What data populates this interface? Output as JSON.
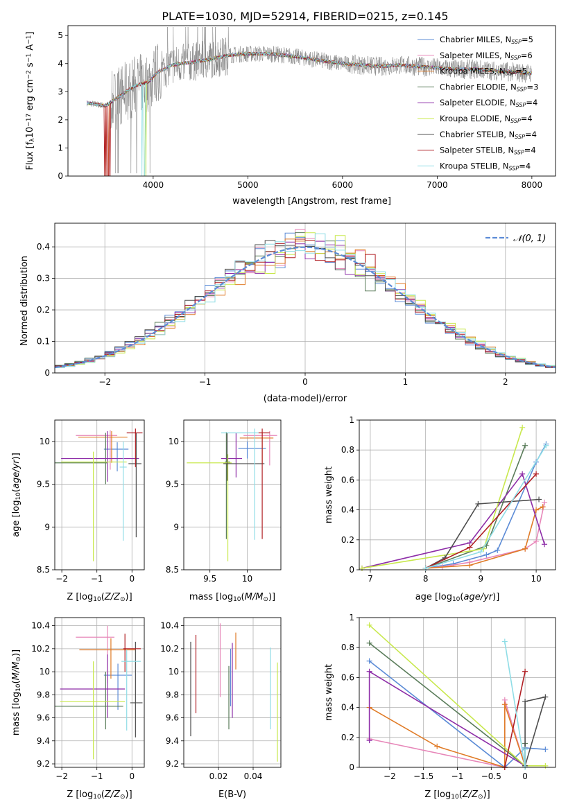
{
  "title": "PLATE=1030, MJD=52914, FIBERID=0215, z=0.145",
  "colors": {
    "chabrier_miles": "#5b8bd6",
    "salpeter_miles": "#e787b9",
    "kroupa_miles": "#e07b27",
    "chabrier_elodie": "#5a7c5a",
    "salpeter_elodie": "#8e2ea8",
    "kroupa_elodie": "#c8e84c",
    "chabrier_stelib": "#4d4d4d",
    "salpeter_stelib": "#b01f24",
    "kroupa_stelib": "#8fdde6",
    "data": "#808080",
    "normal": "#5b8bd6"
  },
  "chart_data": [
    {
      "id": "spectrum",
      "type": "line",
      "xlabel": "wavelength [Angstrom, rest frame]",
      "ylabel": "Flux [f_λ 10^-17 erg cm^-2 s^-1 A^-1]",
      "xlim": [
        3100,
        8250
      ],
      "ylim": [
        0,
        5.35
      ],
      "xticks": [
        4000,
        5000,
        6000,
        7000,
        8000
      ],
      "yticks": [
        0,
        1,
        2,
        3,
        4,
        5
      ],
      "grid": false,
      "legend_position": "top-right",
      "legend": [
        {
          "key": "chabrier_miles",
          "label": "Chabrier MILES, N_SSP=5"
        },
        {
          "key": "salpeter_miles",
          "label": "Salpeter MILES, N_SSP=6"
        },
        {
          "key": "kroupa_miles",
          "label": "Kroupa MILES, N_SSP=5"
        },
        {
          "key": "chabrier_elodie",
          "label": "Chabrier ELODIE, N_SSP=3"
        },
        {
          "key": "salpeter_elodie",
          "label": "Salpeter ELODIE, N_SSP=4"
        },
        {
          "key": "kroupa_elodie",
          "label": "Kroupa ELODIE, N_SSP=4"
        },
        {
          "key": "chabrier_stelib",
          "label": "Chabrier STELIB, N_SSP=4"
        },
        {
          "key": "salpeter_stelib",
          "label": "Salpeter STELIB, N_SSP=4"
        },
        {
          "key": "kroupa_stelib",
          "label": "Kroupa STELIB, N_SSP=4"
        }
      ],
      "continuum": {
        "x": [
          3300,
          3500,
          3650,
          3800,
          3950,
          4050,
          4200,
          4400,
          4600,
          4800,
          5000,
          5200,
          5400,
          5600,
          5800,
          6000,
          6200,
          6400,
          6600,
          6800,
          7000,
          7200,
          7400,
          7600,
          7800,
          8000
        ],
        "y": [
          2.6,
          2.5,
          2.85,
          3.2,
          3.35,
          3.7,
          3.95,
          4.05,
          4.15,
          4.3,
          4.35,
          4.35,
          4.3,
          4.2,
          4.1,
          4.0,
          3.95,
          3.9,
          3.95,
          3.9,
          3.85,
          3.8,
          3.8,
          3.75,
          3.7,
          3.65
        ]
      }
    },
    {
      "id": "residuals",
      "type": "histogram",
      "xlabel": "(data-model)/error",
      "ylabel": "Normed distribution",
      "xlim": [
        -2.5,
        2.5
      ],
      "ylim": [
        0,
        0.475
      ],
      "xticks": [
        -2,
        -1,
        0,
        1,
        2
      ],
      "yticks": [
        0.0,
        0.1,
        0.2,
        0.3,
        0.4
      ],
      "grid": true,
      "legend_position": "top-right",
      "legend_label": "𝒩(0, 1)",
      "bin_width": 0.1
    },
    {
      "id": "age_vs_Z",
      "type": "errorbar",
      "xlabel": "Z [log10(Z/Z⊙)]",
      "ylabel": "age  [log10(age/yr)]",
      "xlim": [
        -2.2,
        0.35
      ],
      "ylim": [
        8.5,
        10.25
      ],
      "xticks": [
        -2,
        -1,
        0
      ],
      "yticks": [
        8.5,
        9.0,
        9.5,
        10.0
      ],
      "grid": true,
      "points": [
        {
          "key": "chabrier_miles",
          "x": -0.42,
          "xerr": [
            0.38,
            0.32
          ],
          "y": 9.91,
          "yerr": [
            0.26,
            0.08
          ]
        },
        {
          "key": "salpeter_miles",
          "x": -0.62,
          "xerr": [
            0.98,
            0.2
          ],
          "y": 10.07,
          "yerr": [
            0.4,
            0.06
          ]
        },
        {
          "key": "kroupa_miles",
          "x": -0.58,
          "xerr": [
            0.95,
            0.45
          ],
          "y": 10.05,
          "yerr": [
            0.3,
            0.07
          ]
        },
        {
          "key": "chabrier_elodie",
          "x": -0.75,
          "xerr": [
            1.45,
            0.05
          ],
          "y": 9.75,
          "yerr": [
            0.25,
            0.35
          ]
        },
        {
          "key": "salpeter_elodie",
          "x": -0.7,
          "xerr": [
            1.32,
            0.9
          ],
          "y": 9.8,
          "yerr": [
            0.27,
            0.32
          ]
        },
        {
          "key": "kroupa_elodie",
          "x": -1.1,
          "xerr": [
            0.92,
            0.95
          ],
          "y": 9.76,
          "yerr": [
            1.16,
            0.12
          ]
        },
        {
          "key": "chabrier_stelib",
          "x": 0.12,
          "xerr": [
            0.22,
            0.15
          ],
          "y": 9.74,
          "yerr": [
            0.86,
            0.36
          ]
        },
        {
          "key": "salpeter_stelib",
          "x": 0.1,
          "xerr": [
            0.25,
            0.2
          ],
          "y": 10.1,
          "yerr": [
            0.4,
            0.05
          ]
        },
        {
          "key": "kroupa_stelib",
          "x": -0.25,
          "xerr": [
            0.1,
            0.1
          ],
          "y": 9.7,
          "yerr": [
            0.86,
            0.3
          ]
        }
      ]
    },
    {
      "id": "age_vs_mass",
      "type": "errorbar",
      "xlabel": "mass [log10(M/M⊙)]",
      "ylabel": "",
      "xlim": [
        9.15,
        10.45
      ],
      "ylim": [
        8.5,
        10.25
      ],
      "xticks": [
        9.5,
        10.0
      ],
      "yticks": [
        8.5,
        9.0,
        9.5,
        10.0
      ],
      "grid": true,
      "points": [
        {
          "key": "chabrier_miles",
          "x": 10.0,
          "xerr": [
            0.12,
            0.25
          ],
          "y": 9.92,
          "yerr": [
            0.12,
            0.08
          ]
        },
        {
          "key": "salpeter_miles",
          "x": 10.3,
          "xerr": [
            0.35,
            0.1
          ],
          "y": 10.07,
          "yerr": [
            0.35,
            0.05
          ]
        },
        {
          "key": "kroupa_miles",
          "x": 10.2,
          "xerr": [
            0.3,
            0.15
          ],
          "y": 10.04,
          "yerr": [
            0.3,
            0.06
          ]
        },
        {
          "key": "chabrier_elodie",
          "x": 9.72,
          "xerr": [
            0.02,
            0.05
          ],
          "y": 9.76,
          "yerr": [
            0.9,
            0.35
          ]
        },
        {
          "key": "salpeter_elodie",
          "x": 9.85,
          "xerr": [
            0.2,
            0.08
          ],
          "y": 9.8,
          "yerr": [
            0.22,
            0.3
          ]
        },
        {
          "key": "kroupa_elodie",
          "x": 9.74,
          "xerr": [
            0.55,
            0.05
          ],
          "y": 9.75,
          "yerr": [
            1.15,
            0.1
          ]
        },
        {
          "key": "chabrier_stelib",
          "x": 9.73,
          "xerr": [
            0.05,
            0.5
          ],
          "y": 9.74,
          "yerr": [
            0.2,
            0.36
          ]
        },
        {
          "key": "salpeter_stelib",
          "x": 10.2,
          "xerr": [
            0.05,
            0.1
          ],
          "y": 10.1,
          "yerr": [
            1.24,
            0.05
          ]
        },
        {
          "key": "kroupa_stelib",
          "x": 10.1,
          "xerr": [
            0.45,
            0.05
          ],
          "y": 10.1,
          "yerr": [
            1.25,
            0.05
          ]
        }
      ]
    },
    {
      "id": "weight_vs_age",
      "type": "line",
      "xlabel": "age  [log10(age/yr)]",
      "ylabel": "mass weight",
      "xlim": [
        6.8,
        10.35
      ],
      "ylim": [
        0,
        1.0
      ],
      "xticks": [
        7,
        8,
        9,
        10
      ],
      "yticks": [
        0.0,
        0.2,
        0.4,
        0.6,
        0.8,
        1.0
      ],
      "grid": true,
      "series": [
        {
          "key": "chabrier_miles",
          "x": [
            8.0,
            8.5,
            9.1,
            9.3,
            10.0,
            10.18
          ],
          "y": [
            0.01,
            0.04,
            0.1,
            0.13,
            0.72,
            0.84
          ]
        },
        {
          "key": "salpeter_miles",
          "x": [
            8.0,
            8.3,
            8.8,
            9.8,
            10.0,
            10.15
          ],
          "y": [
            0.01,
            0.02,
            0.05,
            0.14,
            0.19,
            0.45
          ]
        },
        {
          "key": "kroupa_miles",
          "x": [
            8.0,
            8.8,
            9.8,
            10.0,
            10.12
          ],
          "y": [
            0.01,
            0.03,
            0.14,
            0.4,
            0.42
          ]
        },
        {
          "key": "chabrier_elodie",
          "x": [
            8.0,
            9.1,
            9.8
          ],
          "y": [
            0.01,
            0.16,
            0.83
          ]
        },
        {
          "key": "salpeter_elodie",
          "x": [
            6.85,
            8.8,
            9.75,
            10.15
          ],
          "y": [
            0.01,
            0.18,
            0.64,
            0.17
          ]
        },
        {
          "key": "kroupa_elodie",
          "x": [
            6.85,
            9.05,
            9.75
          ],
          "y": [
            0.01,
            0.14,
            0.95
          ]
        },
        {
          "key": "chabrier_stelib",
          "x": [
            8.0,
            8.35,
            8.95,
            10.05
          ],
          "y": [
            0.01,
            0.08,
            0.44,
            0.47
          ]
        },
        {
          "key": "salpeter_stelib",
          "x": [
            8.0,
            8.8,
            10.0
          ],
          "y": [
            0.01,
            0.15,
            0.64
          ]
        },
        {
          "key": "kroupa_stelib",
          "x": [
            8.0,
            9.0,
            10.18
          ],
          "y": [
            0.01,
            0.12,
            0.83
          ]
        }
      ]
    },
    {
      "id": "mass_vs_Z",
      "type": "errorbar",
      "xlabel": "Z [log10(Z/Z⊙)]",
      "ylabel": "mass [log10(M/M⊙)]",
      "xlim": [
        -2.2,
        0.35
      ],
      "ylim": [
        9.17,
        10.47
      ],
      "xticks": [
        -2,
        -1,
        0
      ],
      "yticks": [
        9.2,
        9.4,
        9.6,
        9.8,
        10.0,
        10.2,
        10.4
      ],
      "grid": true,
      "points": [
        {
          "key": "chabrier_miles",
          "x": -0.4,
          "xerr": [
            0.4,
            0.4
          ],
          "y": 9.97,
          "yerr": [
            0.3,
            0.1
          ]
        },
        {
          "key": "salpeter_miles",
          "x": -0.7,
          "xerr": [
            0.9,
            0.2
          ],
          "y": 10.3,
          "yerr": [
            0.4,
            0.1
          ]
        },
        {
          "key": "kroupa_miles",
          "x": -0.6,
          "xerr": [
            0.9,
            0.7
          ],
          "y": 10.19,
          "yerr": [
            0.25,
            0.1
          ]
        },
        {
          "key": "chabrier_elodie",
          "x": -0.75,
          "xerr": [
            1.45,
            0.5
          ],
          "y": 9.7,
          "yerr": [
            0.2,
            0.3
          ]
        },
        {
          "key": "salpeter_elodie",
          "x": -0.7,
          "xerr": [
            1.35,
            0.5
          ],
          "y": 9.85,
          "yerr": [
            0.25,
            0.3
          ]
        },
        {
          "key": "kroupa_elodie",
          "x": -1.1,
          "xerr": [
            0.95,
            0.9
          ],
          "y": 9.74,
          "yerr": [
            0.5,
            0.35
          ]
        },
        {
          "key": "chabrier_stelib",
          "x": 0.1,
          "xerr": [
            0.15,
            0.2
          ],
          "y": 9.73,
          "yerr": [
            0.3,
            0.53
          ]
        },
        {
          "key": "salpeter_stelib",
          "x": -0.2,
          "xerr": [
            0.05,
            0.45
          ],
          "y": 10.2,
          "yerr": [
            0.2,
            0.13
          ]
        },
        {
          "key": "kroupa_stelib",
          "x": -0.15,
          "xerr": [
            0.15,
            0.4
          ],
          "y": 10.09,
          "yerr": [
            0.6,
            0.1
          ]
        }
      ]
    },
    {
      "id": "mass_vs_ebv",
      "type": "errorbar",
      "xlabel": "E(B-V)",
      "ylabel": "",
      "xlim": [
        0.0,
        0.056
      ],
      "ylim": [
        9.17,
        10.47
      ],
      "xticks": [
        0.02,
        0.04
      ],
      "yticks": [
        9.2,
        9.4,
        9.6,
        9.8,
        10.0,
        10.2,
        10.4
      ],
      "grid": true,
      "points": [
        {
          "key": "chabrier_miles",
          "x": 0.027,
          "y": 10.05,
          "yerr": [
            0.35,
            0.15
          ]
        },
        {
          "key": "salpeter_miles",
          "x": 0.021,
          "y": 10.2,
          "yerr": [
            0.42,
            0.22
          ]
        },
        {
          "key": "kroupa_miles",
          "x": 0.03,
          "y": 10.18,
          "yerr": [
            0.16,
            0.16
          ]
        },
        {
          "key": "chabrier_elodie",
          "x": 0.026,
          "y": 9.85,
          "yerr": [
            0.35,
            0.2
          ]
        },
        {
          "key": "salpeter_elodie",
          "x": 0.028,
          "y": 9.9,
          "yerr": [
            0.3,
            0.35
          ]
        },
        {
          "key": "kroupa_elodie",
          "x": 0.054,
          "y": 9.65,
          "yerr": [
            0.43,
            0.43
          ]
        },
        {
          "key": "chabrier_stelib",
          "x": 0.004,
          "y": 9.85,
          "yerr": [
            0.41,
            0.41
          ]
        },
        {
          "key": "salpeter_stelib",
          "x": 0.007,
          "y": 9.98,
          "yerr": [
            0.34,
            0.34
          ]
        },
        {
          "key": "kroupa_stelib",
          "x": 0.05,
          "y": 9.85,
          "yerr": [
            0.35,
            0.36
          ]
        }
      ]
    },
    {
      "id": "weight_vs_Z",
      "type": "line",
      "xlabel": "Z [log10(Z/Z⊙)]",
      "ylabel": "mass weight",
      "xlim": [
        -2.45,
        0.45
      ],
      "ylim": [
        0,
        1.0
      ],
      "xticks": [
        -2.0,
        -1.5,
        -1.0,
        -0.5,
        0.0
      ],
      "yticks": [
        0.0,
        0.2,
        0.4,
        0.6,
        0.8,
        1.0
      ],
      "grid": true,
      "series": [
        {
          "key": "chabrier_miles",
          "x": [
            -2.3,
            -0.3,
            0.0,
            0.3
          ],
          "y": [
            0.71,
            0.0,
            0.13,
            0.12
          ]
        },
        {
          "key": "salpeter_miles",
          "x": [
            -2.3,
            -0.3,
            -0.3,
            0.0
          ],
          "y": [
            0.19,
            0.0,
            0.45,
            0.01
          ]
        },
        {
          "key": "kroupa_miles",
          "x": [
            -2.3,
            -1.3,
            -0.3,
            -0.3,
            0.0
          ],
          "y": [
            0.4,
            0.14,
            0.0,
            0.42,
            0.01
          ]
        },
        {
          "key": "chabrier_elodie",
          "x": [
            -2.3,
            0.0,
            0.0
          ],
          "y": [
            0.83,
            0.01,
            0.16
          ]
        },
        {
          "key": "salpeter_elodie",
          "x": [
            -2.3,
            -2.3,
            0.0
          ],
          "y": [
            0.18,
            0.64,
            0.01
          ]
        },
        {
          "key": "kroupa_elodie",
          "x": [
            -2.3,
            0.0,
            0.3
          ],
          "y": [
            0.95,
            0.01,
            0.01
          ]
        },
        {
          "key": "chabrier_stelib",
          "x": [
            0.0,
            0.0,
            0.3,
            0.0
          ],
          "y": [
            0.01,
            0.44,
            0.47,
            0.01
          ]
        },
        {
          "key": "salpeter_stelib",
          "x": [
            -0.3,
            0.0
          ],
          "y": [
            0.0,
            0.64
          ]
        },
        {
          "key": "kroupa_stelib",
          "x": [
            -0.3,
            0.0,
            0.0
          ],
          "y": [
            0.84,
            0.0,
            0.12
          ]
        }
      ]
    }
  ]
}
